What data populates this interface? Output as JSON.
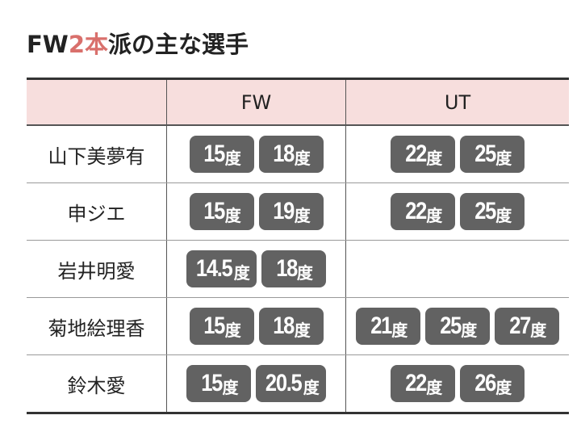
{
  "title": {
    "prefix": "FW",
    "accent": "2本",
    "suffix": "派の主な選手",
    "accent_color": "#d9706c"
  },
  "header": {
    "blank": "",
    "fw": "FW",
    "ut": "UT",
    "background": "#f7dedd"
  },
  "unit": "度",
  "badge_color": "#626262",
  "rows": [
    {
      "name": "山下美夢有",
      "fw": [
        "15",
        "18"
      ],
      "ut": [
        "22",
        "25"
      ]
    },
    {
      "name": "申ジエ",
      "fw": [
        "15",
        "19"
      ],
      "ut": [
        "22",
        "25"
      ]
    },
    {
      "name": "岩井明愛",
      "fw": [
        "14.5",
        "18"
      ],
      "ut": []
    },
    {
      "name": "菊地絵理香",
      "fw": [
        "15",
        "18"
      ],
      "ut": [
        "21",
        "25",
        "27"
      ]
    },
    {
      "name": "鈴木愛",
      "fw": [
        "15",
        "20.5"
      ],
      "ut": [
        "22",
        "26"
      ]
    }
  ]
}
